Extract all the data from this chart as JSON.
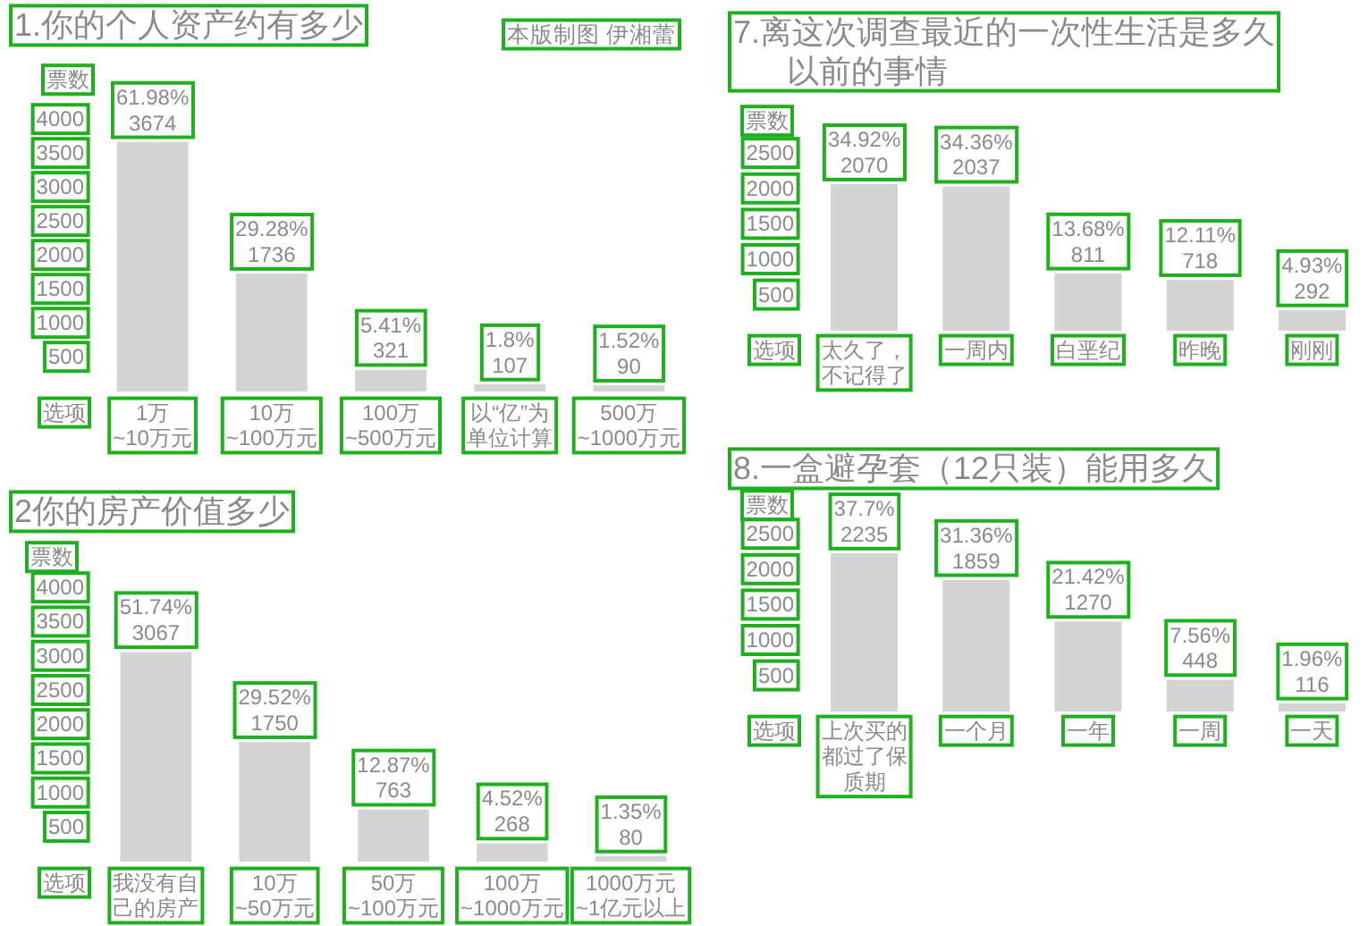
{
  "chart_data": [
    {
      "type": "bar",
      "title": "1.你的个人资产约有多少",
      "ylabel": "票数",
      "xlabel": "选项",
      "categories": [
        "1万~10万元",
        "10万~100万元",
        "100万~500万元",
        "以“亿”为单位计算",
        "500万~1000万元"
      ],
      "values": [
        3674,
        1736,
        321,
        107,
        90
      ],
      "color": "#d4d4d4",
      "value_labels": [
        "61.98%\n3674",
        "29.28%\n1736",
        "5.41%\n321",
        "1.8%\n107",
        "1.52%\n90"
      ],
      "ylim": [
        0,
        4000
      ],
      "yticks": [
        500,
        1000,
        1500,
        2000,
        2500,
        3000,
        3500,
        4000
      ],
      "annotations": [
        "本版制图 伊湘蕾"
      ]
    },
    {
      "type": "bar",
      "title": "2你的房产价值多少",
      "ylabel": "票数",
      "xlabel": "选项",
      "categories": [
        "我没有自己的房产",
        "10万~50万元",
        "50万~100万元",
        "100万~1000万元",
        "1000万元~1亿元以上"
      ],
      "values": [
        3067,
        1750,
        763,
        268,
        80
      ],
      "color": "#d4d4d4",
      "value_labels": [
        "51.74%\n3067",
        "29.52%\n1750",
        "12.87%\n763",
        "4.52%\n268",
        "1.35%\n80"
      ],
      "ylim": [
        0,
        4000
      ],
      "yticks": [
        500,
        1000,
        1500,
        2000,
        2500,
        3000,
        3500,
        4000
      ]
    },
    {
      "type": "bar",
      "title": "7.离这次调查最近的一次性生活是多久以前的事情",
      "ylabel": "票数",
      "xlabel": "选项",
      "categories": [
        "太久了，不记得了",
        "一周内",
        "白垩纪",
        "昨晚",
        "刚刚"
      ],
      "values": [
        2070,
        2037,
        811,
        718,
        292
      ],
      "color": "#d4d4d4",
      "value_labels": [
        "34.92%\n2070",
        "34.36%\n2037",
        "13.68%\n811",
        "12.11%\n718",
        "4.93%\n292"
      ],
      "ylim": [
        0,
        2500
      ],
      "yticks": [
        500,
        1000,
        1500,
        2000,
        2500
      ]
    },
    {
      "type": "bar",
      "title": "8.一盒避孕套（12只装）能用多久",
      "ylabel": "票数",
      "xlabel": "选项",
      "categories": [
        "上次买的都过了保质期",
        "一个月",
        "一年",
        "一周",
        "一天"
      ],
      "values": [
        2235,
        1859,
        1270,
        448,
        116
      ],
      "color": "#d4d4d4",
      "value_labels": [
        "37.7%\n2235",
        "31.36%\n1859",
        "21.42%\n1270",
        "7.56%\n448",
        "1.96%\n116"
      ],
      "ylim": [
        0,
        2500
      ],
      "yticks": [
        500,
        1000,
        1500,
        2000,
        2500
      ]
    }
  ]
}
